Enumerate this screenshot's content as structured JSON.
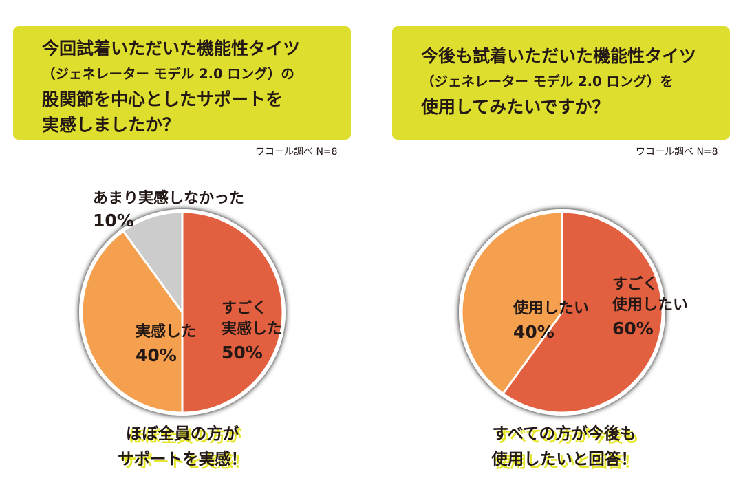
{
  "panels": [
    {
      "question_lines": [
        "今回試着いただいた機能性タイツ",
        "（ジェネレーター モデル 2.0 ロング）の",
        "股関節を中心としたサポートを",
        "実感しましたか？"
      ],
      "source": "ワコール調べ N=8",
      "callout_lines": [
        "ほぼ全員の方が",
        "サポートを実感！"
      ]
    },
    {
      "question_lines": [
        "今後も試着いただいた機能性タイツ",
        "（ジェネレーター モデル 2.0 ロング）を",
        "使用してみたいですか？"
      ],
      "source": "ワコール調べ N=8",
      "callout_lines": [
        "すべての方が今後も",
        "使用したいと回答！"
      ]
    }
  ],
  "chart_data": [
    {
      "type": "pie",
      "start": "top, clockwise",
      "slices": [
        {
          "label_lines": [
            "すごく",
            "実感した"
          ],
          "value": 50,
          "value_label": "50%",
          "color": "#e26040"
        },
        {
          "label_lines": [
            "実感した"
          ],
          "value": 40,
          "value_label": "40%",
          "color": "#f4a04e"
        },
        {
          "label_lines": [
            "あまり実感しなかった"
          ],
          "value": 10,
          "value_label": "10%",
          "color": "#cccccc"
        }
      ]
    },
    {
      "type": "pie",
      "start": "top, clockwise",
      "slices": [
        {
          "label_lines": [
            "すごく",
            "使用したい"
          ],
          "value": 60,
          "value_label": "60%",
          "color": "#e26040"
        },
        {
          "label_lines": [
            "使用したい"
          ],
          "value": 40,
          "value_label": "40%",
          "color": "#f4a04e"
        }
      ]
    }
  ]
}
